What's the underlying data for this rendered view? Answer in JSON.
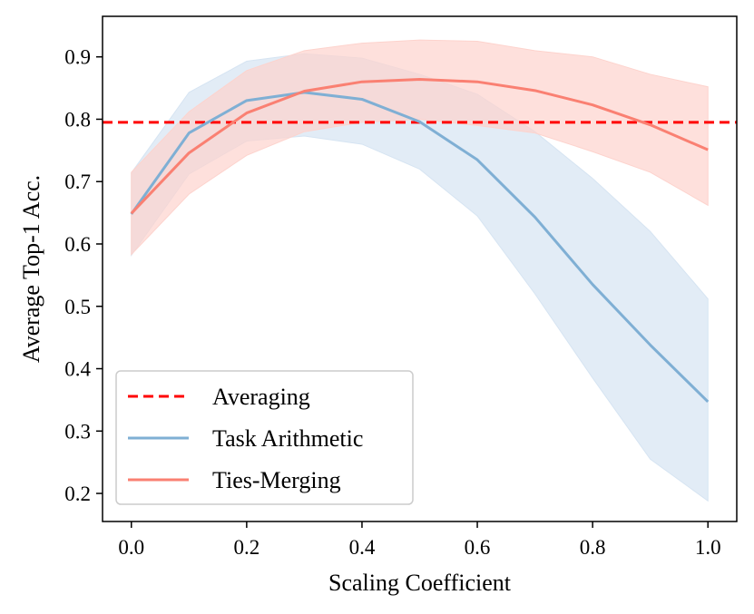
{
  "chart_data": {
    "type": "line",
    "title": "",
    "xlabel": "Scaling Coefficient",
    "ylabel": "Average Top-1 Acc.",
    "xlim": [
      -0.05,
      1.05
    ],
    "ylim": [
      0.155,
      0.965
    ],
    "xticks": [
      0.0,
      0.2,
      0.4,
      0.6,
      0.8,
      1.0
    ],
    "xtick_labels": [
      "0.0",
      "0.2",
      "0.4",
      "0.6",
      "0.8",
      "1.0"
    ],
    "yticks": [
      0.2,
      0.3,
      0.4,
      0.5,
      0.6,
      0.7,
      0.8,
      0.9
    ],
    "ytick_labels": [
      "0.2",
      "0.3",
      "0.4",
      "0.5",
      "0.6",
      "0.7",
      "0.8",
      "0.9"
    ],
    "grid": false,
    "legend_position": "lower-left",
    "x": [
      0.0,
      0.1,
      0.2,
      0.3,
      0.4,
      0.5,
      0.6,
      0.7,
      0.8,
      0.9,
      1.0
    ],
    "hlines": [
      {
        "name": "Averaging",
        "value": 0.795,
        "color": "#ff0000",
        "style": "dashed"
      }
    ],
    "series": [
      {
        "name": "Task Arithmetic",
        "color": "#7fafd4",
        "band_color": "#d6e4f2",
        "values": [
          0.648,
          0.778,
          0.83,
          0.843,
          0.832,
          0.796,
          0.735,
          0.643,
          0.535,
          0.438,
          0.347
        ],
        "lower": [
          0.582,
          0.712,
          0.765,
          0.773,
          0.76,
          0.72,
          0.645,
          0.52,
          0.385,
          0.255,
          0.188
        ],
        "upper": [
          0.714,
          0.843,
          0.893,
          0.905,
          0.898,
          0.872,
          0.84,
          0.78,
          0.705,
          0.62,
          0.512
        ]
      },
      {
        "name": "Ties-Merging",
        "color": "#fa8072",
        "band_color": "#fdd3cd",
        "values": [
          0.649,
          0.746,
          0.81,
          0.845,
          0.86,
          0.864,
          0.86,
          0.846,
          0.823,
          0.791,
          0.751
        ],
        "lower": [
          0.583,
          0.68,
          0.742,
          0.78,
          0.795,
          0.8,
          0.79,
          0.778,
          0.748,
          0.715,
          0.662
        ],
        "upper": [
          0.715,
          0.812,
          0.878,
          0.91,
          0.922,
          0.927,
          0.925,
          0.91,
          0.9,
          0.872,
          0.852
        ]
      }
    ],
    "legend": [
      "Averaging",
      "Task Arithmetic",
      "Ties-Merging"
    ]
  }
}
